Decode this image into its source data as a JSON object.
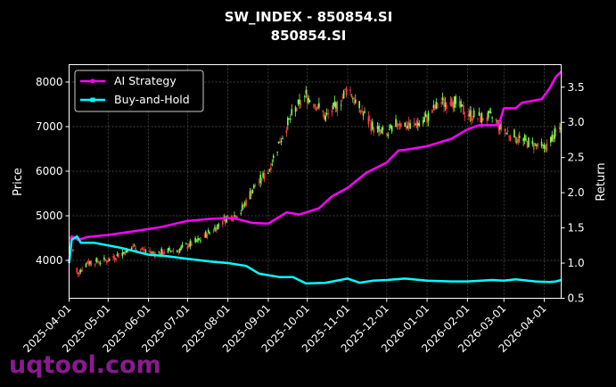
{
  "chart_data": {
    "type": "candlestick+line",
    "title_line1": "SW_INDEX - 850854.SI",
    "title_line2": "850854.SI",
    "ylabel_left": "Price",
    "ylabel_right": "Return",
    "ylim_left": [
      3150,
      8390
    ],
    "ylim_right": [
      0.5,
      3.82
    ],
    "yticks_left": [
      4000,
      5000,
      6000,
      7000,
      8000
    ],
    "yticks_right": [
      0.5,
      1.0,
      1.5,
      2.0,
      2.5,
      3.0,
      3.5
    ],
    "xlim": [
      "2025-04-01",
      "2026-04-14"
    ],
    "xticks": [
      "2025-04-01",
      "2025-05-01",
      "2025-06-01",
      "2025-07-01",
      "2025-08-01",
      "2025-09-01",
      "2025-10-01",
      "2025-11-01",
      "2025-12-01",
      "2026-01-01",
      "2026-02-01",
      "2026-03-01",
      "2026-04-01"
    ],
    "grid": true,
    "legend_placement": "top-left",
    "price_anchors": [
      [
        "2025-04-01",
        4650
      ],
      [
        "2025-04-07",
        3700
      ],
      [
        "2025-04-15",
        3950
      ],
      [
        "2025-05-01",
        4000
      ],
      [
        "2025-05-20",
        4300
      ],
      [
        "2025-06-05",
        4150
      ],
      [
        "2025-06-25",
        4250
      ],
      [
        "2025-07-10",
        4450
      ],
      [
        "2025-07-31",
        4950
      ],
      [
        "2025-08-10",
        5050
      ],
      [
        "2025-08-20",
        5600
      ],
      [
        "2025-09-01",
        6000
      ],
      [
        "2025-09-10",
        6700
      ],
      [
        "2025-09-20",
        7300
      ],
      [
        "2025-09-30",
        7700
      ],
      [
        "2025-10-08",
        7500
      ],
      [
        "2025-10-15",
        7200
      ],
      [
        "2025-10-25",
        7500
      ],
      [
        "2025-11-01",
        7900
      ],
      [
        "2025-11-08",
        7500
      ],
      [
        "2025-11-20",
        7000
      ],
      [
        "2025-12-01",
        6800
      ],
      [
        "2025-12-10",
        7100
      ],
      [
        "2025-12-20",
        7000
      ],
      [
        "2026-01-01",
        7200
      ],
      [
        "2026-01-10",
        7500
      ],
      [
        "2026-01-20",
        7600
      ],
      [
        "2026-01-31",
        7300
      ],
      [
        "2026-02-10",
        7200
      ],
      [
        "2026-02-20",
        7200
      ],
      [
        "2026-03-01",
        6900
      ],
      [
        "2026-03-15",
        6700
      ],
      [
        "2026-04-01",
        6500
      ],
      [
        "2026-04-14",
        7000
      ]
    ],
    "series": [
      {
        "name": "AI Strategy",
        "color": "#ff00ff",
        "marker": "o",
        "points": [
          [
            "2025-04-01",
            1.0
          ],
          [
            "2025-04-03",
            1.38
          ],
          [
            "2025-04-08",
            1.33
          ],
          [
            "2025-04-15",
            1.37
          ],
          [
            "2025-05-01",
            1.4
          ],
          [
            "2025-05-20",
            1.45
          ],
          [
            "2025-06-10",
            1.51
          ],
          [
            "2025-07-01",
            1.6
          ],
          [
            "2025-07-20",
            1.63
          ],
          [
            "2025-08-05",
            1.64
          ],
          [
            "2025-08-20",
            1.57
          ],
          [
            "2025-09-01",
            1.56
          ],
          [
            "2025-09-15",
            1.72
          ],
          [
            "2025-09-25",
            1.69
          ],
          [
            "2025-10-10",
            1.78
          ],
          [
            "2025-10-20",
            1.95
          ],
          [
            "2025-11-01",
            2.07
          ],
          [
            "2025-11-15",
            2.28
          ],
          [
            "2025-12-01",
            2.43
          ],
          [
            "2025-12-10",
            2.6
          ],
          [
            "2025-12-15",
            2.61
          ],
          [
            "2026-01-01",
            2.66
          ],
          [
            "2026-01-20",
            2.77
          ],
          [
            "2026-02-01",
            2.9
          ],
          [
            "2026-02-10",
            2.96
          ],
          [
            "2026-02-25",
            2.96
          ],
          [
            "2026-03-01",
            3.2
          ],
          [
            "2026-03-10",
            3.2
          ],
          [
            "2026-03-15",
            3.28
          ],
          [
            "2026-03-30",
            3.33
          ],
          [
            "2026-04-05",
            3.48
          ],
          [
            "2026-04-10",
            3.65
          ],
          [
            "2026-04-14",
            3.72
          ]
        ]
      },
      {
        "name": "Buy-and-Hold",
        "color": "#00ffff",
        "marker": "s",
        "points": [
          [
            "2025-04-01",
            1.0
          ],
          [
            "2025-04-03",
            1.33
          ],
          [
            "2025-04-07",
            1.38
          ],
          [
            "2025-04-10",
            1.29
          ],
          [
            "2025-04-20",
            1.29
          ],
          [
            "2025-05-10",
            1.22
          ],
          [
            "2025-06-01",
            1.12
          ],
          [
            "2025-06-15",
            1.1
          ],
          [
            "2025-07-01",
            1.06
          ],
          [
            "2025-07-20",
            1.02
          ],
          [
            "2025-08-01",
            1.0
          ],
          [
            "2025-08-15",
            0.96
          ],
          [
            "2025-08-25",
            0.85
          ],
          [
            "2025-09-10",
            0.8
          ],
          [
            "2025-09-20",
            0.8
          ],
          [
            "2025-09-30",
            0.71
          ],
          [
            "2025-10-15",
            0.72
          ],
          [
            "2025-11-01",
            0.78
          ],
          [
            "2025-11-10",
            0.72
          ],
          [
            "2025-11-20",
            0.75
          ],
          [
            "2025-12-01",
            0.76
          ],
          [
            "2025-12-15",
            0.78
          ],
          [
            "2026-01-01",
            0.75
          ],
          [
            "2026-01-20",
            0.74
          ],
          [
            "2026-02-01",
            0.74
          ],
          [
            "2026-02-20",
            0.76
          ],
          [
            "2026-03-01",
            0.75
          ],
          [
            "2026-03-10",
            0.77
          ],
          [
            "2026-03-25",
            0.74
          ],
          [
            "2026-04-05",
            0.73
          ],
          [
            "2026-04-10",
            0.74
          ],
          [
            "2026-04-14",
            0.76
          ]
        ]
      }
    ],
    "candle_colors": {
      "up": "#7dff4d",
      "down": "#ff4040"
    }
  },
  "watermark": "uqtool.com"
}
